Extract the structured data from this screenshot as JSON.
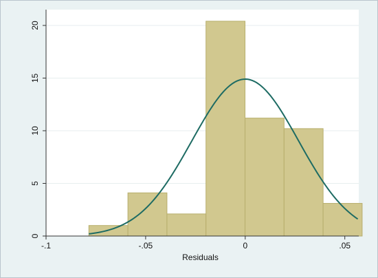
{
  "chart_data": {
    "type": "bar",
    "subtype": "histogram",
    "title": "",
    "xlabel": "Residuals",
    "ylabel": "",
    "xlim": [
      -0.1,
      0.057
    ],
    "ylim": [
      0,
      21.5
    ],
    "grid": true,
    "x_ticks": [
      {
        "value": -0.1,
        "label": "-.1"
      },
      {
        "value": -0.05,
        "label": "-.05"
      },
      {
        "value": 0,
        "label": "0"
      },
      {
        "value": 0.05,
        "label": ".05"
      }
    ],
    "y_ticks": [
      {
        "value": 0,
        "label": "0"
      },
      {
        "value": 5,
        "label": "5"
      },
      {
        "value": 10,
        "label": "10"
      },
      {
        "value": 15,
        "label": "15"
      },
      {
        "value": 20,
        "label": "20"
      }
    ],
    "bins": [
      {
        "start": -0.0785,
        "end": -0.0589,
        "value": 1.0
      },
      {
        "start": -0.0589,
        "end": -0.0393,
        "value": 4.1
      },
      {
        "start": -0.0393,
        "end": -0.0197,
        "value": 2.1
      },
      {
        "start": -0.0197,
        "end": -0.0001,
        "value": 20.4
      },
      {
        "start": -0.0001,
        "end": 0.0195,
        "value": 11.2
      },
      {
        "start": 0.0195,
        "end": 0.0391,
        "value": 10.2
      },
      {
        "start": 0.0391,
        "end": 0.0587,
        "value": 3.1
      }
    ],
    "normal_curve": {
      "mean": 0.0,
      "sd": 0.0268,
      "peak": 14.9,
      "x_range": [
        -0.0785,
        0.0565
      ]
    },
    "colors": {
      "background": "#eaf2f3",
      "plot_area": "#ffffff",
      "bar_fill": "#d1c88f",
      "bar_edge": "#b7ae6c",
      "curve": "#1d6b63",
      "grid": "#e7eeef"
    }
  }
}
